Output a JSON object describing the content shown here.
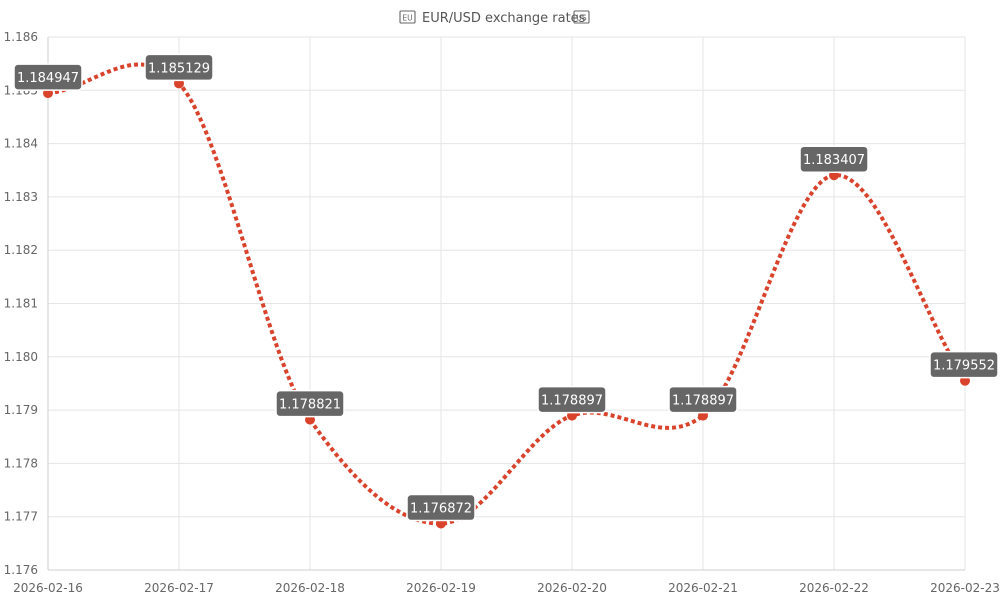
{
  "chart_data": {
    "type": "line",
    "title": "EUR/USD exchange rates",
    "title_icon_left": "eu-flag-icon",
    "title_icon_right": "us-flag-icon",
    "categories": [
      "2026-02-16",
      "2026-02-17",
      "2026-02-18",
      "2026-02-19",
      "2026-02-20",
      "2026-02-21",
      "2026-02-22",
      "2026-02-23"
    ],
    "series": [
      {
        "values": [
          1.184947,
          1.185129,
          1.178821,
          1.176872,
          1.178897,
          1.178897,
          1.183407,
          1.179552
        ],
        "labels": [
          "1.184947",
          "1.185129",
          "1.178821",
          "1.176872",
          "1.178897",
          "1.178897",
          "1.183407",
          "1.179552"
        ],
        "color": "#d9432b",
        "line_style": "dotted",
        "smooth": true
      }
    ],
    "ylim": [
      1.176,
      1.186
    ],
    "yticks": [
      1.176,
      1.177,
      1.178,
      1.179,
      1.18,
      1.181,
      1.182,
      1.183,
      1.184,
      1.185,
      1.186
    ],
    "ytick_labels": [
      "1.176",
      "1.177",
      "1.178",
      "1.179",
      "1.180",
      "1.181",
      "1.182",
      "1.183",
      "1.184",
      "1.185",
      "1.186"
    ],
    "grid": true,
    "xlabel": "",
    "ylabel": ""
  },
  "colors": {
    "line": "#d9432b",
    "label_bg": "#666666",
    "label_text": "#ffffff",
    "grid": "#e5e5e5",
    "tick_text": "#666666",
    "title_text": "#555555"
  }
}
